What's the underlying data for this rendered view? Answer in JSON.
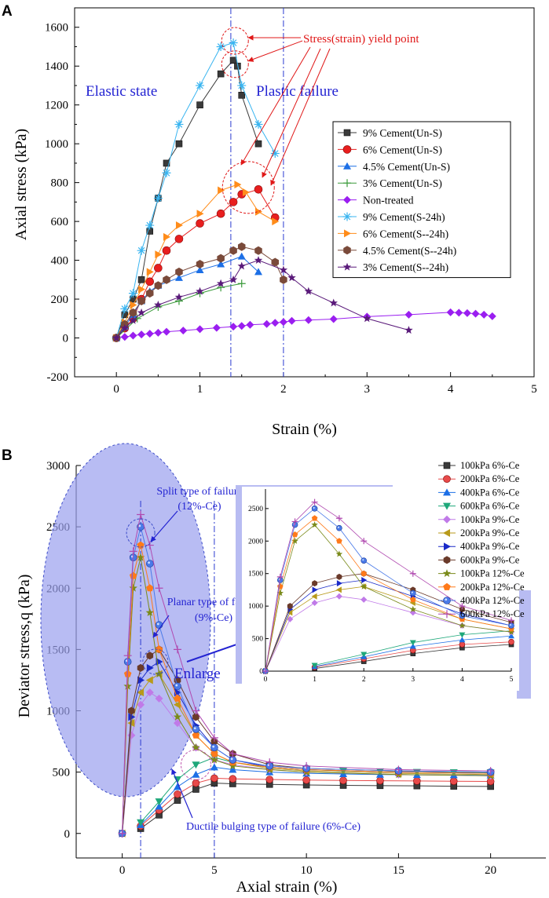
{
  "figure": {
    "panel_a_letter": "A",
    "panel_b_letter": "B"
  },
  "chart_data": [
    {
      "type": "line",
      "panel": "A",
      "title": "",
      "xlabel": "Strain (%)",
      "ylabel": "Axial stress (kPa)",
      "xlim": [
        -0.5,
        5
      ],
      "ylim": [
        -200,
        1700
      ],
      "xticks": [
        "0",
        "1",
        "2",
        "3",
        "4",
        "5"
      ],
      "yticks": [
        "-200",
        "0",
        "200",
        "400",
        "600",
        "800",
        "1000",
        "1200",
        "1400",
        "1600"
      ],
      "annotations": {
        "elastic": "Elastic state",
        "plastic": "Plastic failure",
        "yield": "Stress(strain) yield point"
      },
      "vlines": [
        1.37,
        2.0
      ],
      "series": [
        {
          "name": "9% Cement(Un-S)",
          "marker": "square",
          "color": "#3a3a3a",
          "x": [
            0,
            0.1,
            0.2,
            0.3,
            0.4,
            0.5,
            0.6,
            0.75,
            1.0,
            1.25,
            1.4,
            1.45,
            1.5,
            1.7
          ],
          "y": [
            0,
            120,
            200,
            300,
            550,
            720,
            900,
            1000,
            1200,
            1360,
            1430,
            1400,
            1250,
            1000
          ]
        },
        {
          "name": "6% Cement(Un-S)",
          "marker": "circle",
          "color": "#e81e1e",
          "x": [
            0,
            0.1,
            0.2,
            0.3,
            0.4,
            0.5,
            0.6,
            0.75,
            1.0,
            1.25,
            1.4,
            1.5,
            1.7,
            1.9
          ],
          "y": [
            0,
            50,
            100,
            200,
            290,
            360,
            450,
            510,
            590,
            640,
            700,
            740,
            765,
            620
          ]
        },
        {
          "name": "4.5% Cement(Un-S)",
          "marker": "triangle",
          "color": "#1c6fe6",
          "x": [
            0,
            0.1,
            0.2,
            0.3,
            0.4,
            0.5,
            0.75,
            1.0,
            1.25,
            1.5,
            1.7
          ],
          "y": [
            0,
            60,
            120,
            190,
            240,
            270,
            310,
            350,
            380,
            420,
            340
          ]
        },
        {
          "name": "3% Cement(Un-S)",
          "marker": "plus",
          "color": "#3a9a3a",
          "x": [
            0,
            0.25,
            0.5,
            0.75,
            1.0,
            1.25,
            1.5
          ],
          "y": [
            0,
            100,
            160,
            190,
            230,
            260,
            280
          ]
        },
        {
          "name": "Non-treated",
          "marker": "diamond",
          "color": "#9a1ef0",
          "x": [
            0,
            0.1,
            0.2,
            0.3,
            0.4,
            0.5,
            0.6,
            0.8,
            1.0,
            1.2,
            1.4,
            1.5,
            1.6,
            1.8,
            1.9,
            2.0,
            2.1,
            2.3,
            2.6,
            3.0,
            3.5,
            4.0,
            4.1,
            4.2,
            4.3,
            4.4,
            4.5
          ],
          "y": [
            0,
            5,
            12,
            18,
            22,
            27,
            32,
            38,
            45,
            52,
            58,
            62,
            68,
            72,
            78,
            82,
            88,
            92,
            97,
            110,
            120,
            132,
            130,
            128,
            125,
            120,
            112
          ]
        },
        {
          "name": "9% Cement(S-24h)",
          "marker": "asterisk",
          "color": "#38b4f0",
          "x": [
            0,
            0.1,
            0.2,
            0.3,
            0.4,
            0.5,
            0.6,
            0.75,
            1.0,
            1.25,
            1.4,
            1.5,
            1.7,
            1.9
          ],
          "y": [
            0,
            150,
            230,
            450,
            580,
            720,
            850,
            1100,
            1300,
            1500,
            1520,
            1300,
            1100,
            950
          ]
        },
        {
          "name": "6% Cement(S--24h)",
          "marker": "tri-right",
          "color": "#ff8c1a",
          "x": [
            0,
            0.1,
            0.2,
            0.3,
            0.4,
            0.5,
            0.6,
            0.75,
            1.0,
            1.25,
            1.45,
            1.55,
            1.7,
            1.9
          ],
          "y": [
            0,
            80,
            170,
            250,
            340,
            430,
            520,
            580,
            640,
            760,
            790,
            750,
            650,
            600
          ]
        },
        {
          "name": "4.5% Cement(S--24h)",
          "marker": "hexagon",
          "color": "#7a4a3a",
          "x": [
            0,
            0.1,
            0.2,
            0.3,
            0.4,
            0.5,
            0.6,
            0.75,
            1.0,
            1.25,
            1.4,
            1.5,
            1.7,
            1.9,
            2.0
          ],
          "y": [
            0,
            70,
            130,
            190,
            230,
            270,
            300,
            340,
            380,
            410,
            450,
            470,
            450,
            390,
            300
          ]
        },
        {
          "name": "3% Cement(S--24h)",
          "marker": "star",
          "color": "#5a1a7a",
          "x": [
            0,
            0.1,
            0.2,
            0.3,
            0.5,
            0.75,
            1.0,
            1.25,
            1.4,
            1.5,
            1.7,
            2.0,
            2.1,
            2.3,
            2.6,
            3.0,
            3.5
          ],
          "y": [
            0,
            50,
            90,
            130,
            170,
            210,
            240,
            280,
            300,
            370,
            400,
            350,
            310,
            240,
            180,
            100,
            40
          ]
        }
      ]
    },
    {
      "type": "line",
      "panel": "B",
      "title": "",
      "xlabel": "Axial strain (%)",
      "ylabel": "Deviator stress,q (kPa)",
      "xlim": [
        -2.5,
        23
      ],
      "ylim": [
        -200,
        3000
      ],
      "xticks": [
        "0",
        "5",
        "10",
        "15",
        "20"
      ],
      "yticks": [
        "0",
        "500",
        "1000",
        "1500",
        "2000",
        "2500",
        "3000"
      ],
      "vlines": [
        1.0,
        5.0
      ],
      "annotations": {
        "split": "Split type of failure",
        "split_sub": "(12%-Ce)",
        "planar": "Planar type of failure",
        "planar_sub": "(9%-Ce)",
        "enlarge": "Enlarge",
        "ductile": "Ductile bulging type of failure (6%-Ce)"
      },
      "inset": {
        "xticks": [
          "0",
          "1",
          "2",
          "3",
          "4",
          "5"
        ],
        "yticks": [
          "0",
          "500",
          "1000",
          "1500",
          "2000",
          "2500"
        ],
        "xlim": [
          0,
          5
        ],
        "ylim": [
          0,
          2800
        ]
      },
      "series": [
        {
          "name": "100kPa 6%-Ce",
          "marker": "square",
          "color": "#3a3a3a",
          "x": [
            1,
            2,
            3,
            4,
            5,
            6,
            8,
            10,
            12,
            14,
            16,
            18,
            20
          ],
          "y": [
            40,
            150,
            270,
            360,
            410,
            405,
            400,
            395,
            392,
            390,
            388,
            385,
            383
          ]
        },
        {
          "name": "200kPa 6%-Ce",
          "marker": "circle",
          "color": "#e84a4a",
          "x": [
            1,
            2,
            3,
            4,
            5,
            6,
            8,
            10,
            12,
            14,
            16,
            18,
            20
          ],
          "y": [
            60,
            190,
            320,
            410,
            450,
            445,
            440,
            435,
            432,
            430,
            428,
            426,
            424
          ]
        },
        {
          "name": "400kPa 6%-Ce",
          "marker": "triangle",
          "color": "#1c6fe6",
          "x": [
            1,
            2,
            3,
            4,
            5,
            6,
            8,
            10,
            12,
            14,
            16,
            18,
            20
          ],
          "y": [
            70,
            220,
            380,
            480,
            540,
            520,
            500,
            490,
            485,
            480,
            478,
            476,
            474
          ]
        },
        {
          "name": "600kPa 6%-Ce",
          "marker": "tri-down",
          "color": "#1ea87a",
          "x": [
            1,
            2,
            3,
            4,
            5,
            6,
            8,
            10,
            12,
            14,
            16,
            18,
            20
          ],
          "y": [
            90,
            260,
            440,
            560,
            620,
            580,
            540,
            520,
            510,
            505,
            500,
            498,
            496
          ]
        },
        {
          "name": "100kPa 9%-Ce",
          "marker": "diamond",
          "color": "#c07ae8",
          "x": [
            0,
            0.5,
            1,
            1.5,
            2,
            3,
            4,
            5,
            6,
            8,
            10,
            15,
            20
          ],
          "y": [
            0,
            800,
            1050,
            1150,
            1100,
            900,
            700,
            600,
            560,
            520,
            500,
            480,
            470
          ]
        },
        {
          "name": "200kPa 9%-Ce",
          "marker": "tri-left",
          "color": "#b89a1a",
          "x": [
            0,
            0.5,
            1,
            1.5,
            2,
            3,
            4,
            5,
            6,
            8,
            10,
            15,
            20
          ],
          "y": [
            0,
            900,
            1150,
            1250,
            1300,
            1050,
            800,
            650,
            580,
            530,
            510,
            490,
            480
          ]
        },
        {
          "name": "400kPa 9%-Ce",
          "marker": "tri-right",
          "color": "#1a2ac8",
          "x": [
            0,
            0.5,
            1,
            1.5,
            2,
            3,
            4,
            5,
            6,
            8,
            10,
            15,
            20
          ],
          "y": [
            0,
            950,
            1250,
            1350,
            1400,
            1150,
            880,
            700,
            600,
            540,
            520,
            500,
            490
          ]
        },
        {
          "name": "600kPa 9%-Ce",
          "marker": "hexagon",
          "color": "#6a3a2a",
          "x": [
            0,
            0.5,
            1,
            1.5,
            2,
            3,
            4,
            5,
            6,
            8,
            10,
            15,
            20
          ],
          "y": [
            0,
            1000,
            1350,
            1450,
            1500,
            1250,
            950,
            750,
            650,
            560,
            530,
            510,
            500
          ]
        },
        {
          "name": "100kPa 12%-Ce",
          "marker": "star",
          "color": "#7a8a1a",
          "x": [
            0,
            0.3,
            0.6,
            1,
            1.5,
            2,
            3,
            4,
            5,
            6,
            8,
            10,
            15,
            20
          ],
          "y": [
            0,
            1200,
            2000,
            2250,
            1800,
            1300,
            950,
            700,
            600,
            550,
            520,
            500,
            480,
            470
          ]
        },
        {
          "name": "200kPa 12%-Ce",
          "marker": "pentagon",
          "color": "#ff7a1a",
          "x": [
            0,
            0.3,
            0.6,
            1,
            1.5,
            2,
            3,
            4,
            5,
            6,
            8,
            10,
            15,
            20
          ],
          "y": [
            0,
            1300,
            2100,
            2350,
            2000,
            1500,
            1100,
            800,
            650,
            580,
            540,
            520,
            500,
            490
          ]
        },
        {
          "name": "400kPa 12%-Ce",
          "marker": "sphere",
          "color": "#4a7ae8",
          "x": [
            0,
            0.3,
            0.6,
            1,
            1.5,
            2,
            3,
            4,
            5,
            6,
            8,
            10,
            15,
            20
          ],
          "y": [
            0,
            1400,
            2250,
            2500,
            2200,
            1700,
            1200,
            850,
            700,
            600,
            550,
            530,
            510,
            500
          ]
        },
        {
          "name": "600kPa 12%-Ce",
          "marker": "plus",
          "color": "#b04ab0",
          "x": [
            0,
            0.3,
            0.6,
            1,
            1.5,
            2,
            3,
            4,
            5,
            6,
            8,
            10,
            15,
            20
          ],
          "y": [
            0,
            1450,
            2300,
            2600,
            2350,
            2000,
            1500,
            1000,
            780,
            650,
            580,
            550,
            520,
            510
          ]
        }
      ]
    }
  ]
}
